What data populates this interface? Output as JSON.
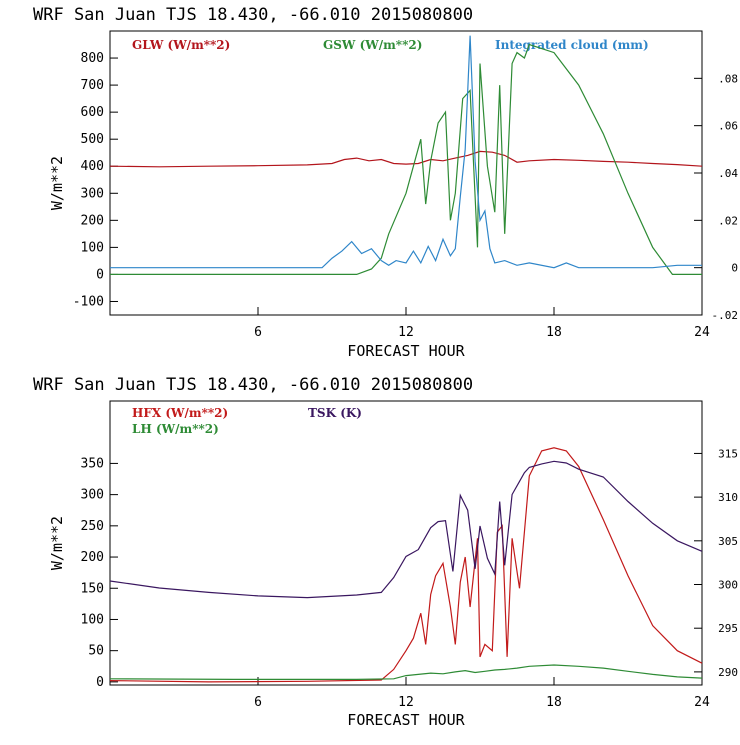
{
  "charts": [
    {
      "title": "WRF  San Juan TJS  18.430, -66.010  2015080800",
      "xlabel": "FORECAST HOUR",
      "ylabel": "W/m**2",
      "xticks": [
        "6",
        "12",
        "18",
        "24"
      ],
      "yticks": [
        "-100",
        "0",
        "100",
        "200",
        "300",
        "400",
        "500",
        "600",
        "700",
        "800"
      ],
      "y2ticks": [
        "-.02",
        "0",
        ".02",
        ".04",
        ".06",
        ".08"
      ],
      "legend": [
        "GLW (W/m**2)",
        "GSW (W/m**2)",
        "Integrated cloud (mm)"
      ]
    },
    {
      "title": "WRF  San Juan TJS  18.430, -66.010  2015080800",
      "xlabel": "FORECAST HOUR",
      "ylabel": "W/m**2",
      "xticks": [
        "6",
        "12",
        "18",
        "24"
      ],
      "yticks": [
        "0",
        "50",
        "100",
        "150",
        "200",
        "250",
        "300",
        "350"
      ],
      "y2ticks": [
        "290",
        "295",
        "300",
        "305",
        "310",
        "315"
      ],
      "legend": [
        "HFX (W/m**2)",
        "LH (W/m**2)",
        "TSK (K)"
      ]
    }
  ],
  "colors": {
    "GLW": "#b3151c",
    "GSW": "#2e8b35",
    "CLOUD": "#2f86c9",
    "HFX": "#c21a1a",
    "LH": "#2e8b35",
    "TSK": "#3a1760",
    "axis": "#000000"
  },
  "chart_data": [
    {
      "type": "line",
      "title": "WRF  San Juan TJS  18.430, -66.010  2015080800",
      "xlabel": "FORECAST HOUR",
      "ylabel": "W/m**2",
      "xlim": [
        0,
        24
      ],
      "ylim": [
        -150,
        900
      ],
      "y2lim": [
        -0.02,
        0.1
      ],
      "grid": false,
      "legend_position": "top",
      "series": [
        {
          "name": "GLW (W/m**2)",
          "axis": "left",
          "color": "#b3151c",
          "x": [
            0,
            2,
            4,
            6,
            8,
            9,
            9.5,
            10,
            10.5,
            11,
            11.5,
            12,
            12.5,
            13,
            13.5,
            14,
            14.5,
            15,
            15.5,
            16,
            16.5,
            17,
            18,
            19,
            20,
            21,
            22,
            23,
            24
          ],
          "y": [
            400,
            398,
            400,
            402,
            405,
            410,
            425,
            430,
            420,
            425,
            410,
            408,
            410,
            425,
            420,
            430,
            440,
            455,
            452,
            440,
            415,
            420,
            425,
            422,
            418,
            415,
            410,
            406,
            400
          ]
        },
        {
          "name": "GSW (W/m**2)",
          "axis": "left",
          "color": "#2e8b35",
          "x": [
            0,
            10,
            10.6,
            11,
            11.3,
            12,
            12.3,
            12.6,
            12.8,
            13,
            13.3,
            13.6,
            13.8,
            14,
            14.3,
            14.6,
            14.9,
            15,
            15.3,
            15.6,
            15.8,
            16,
            16.3,
            16.5,
            16.8,
            17,
            18,
            19,
            20,
            21,
            22,
            22.8,
            23.2,
            24
          ],
          "y": [
            0,
            0,
            20,
            60,
            150,
            300,
            400,
            500,
            260,
            420,
            560,
            600,
            200,
            300,
            650,
            680,
            100,
            780,
            400,
            230,
            700,
            150,
            780,
            820,
            800,
            850,
            820,
            700,
            520,
            300,
            100,
            0,
            0,
            0
          ]
        },
        {
          "name": "Integrated cloud (mm)",
          "axis": "right",
          "color": "#2f86c9",
          "x": [
            0,
            8,
            8.6,
            9,
            9.4,
            9.8,
            10.2,
            10.6,
            11,
            11.3,
            11.6,
            12,
            12.3,
            12.6,
            12.9,
            13.2,
            13.5,
            13.8,
            14,
            14.2,
            14.4,
            14.6,
            14.8,
            15,
            15.2,
            15.4,
            15.6,
            16,
            16.5,
            17,
            18,
            18.5,
            19,
            20,
            21,
            22,
            23,
            24
          ],
          "y": [
            0,
            0,
            0,
            0.004,
            0.007,
            0.011,
            0.006,
            0.008,
            0.003,
            0.001,
            0.003,
            0.002,
            0.007,
            0.002,
            0.009,
            0.003,
            0.012,
            0.005,
            0.008,
            0.03,
            0.05,
            0.098,
            0.045,
            0.02,
            0.024,
            0.008,
            0.002,
            0.003,
            0.001,
            0.002,
            0,
            0.002,
            0,
            0,
            0,
            0,
            0.001,
            0.001
          ]
        }
      ]
    },
    {
      "type": "line",
      "title": "WRF  San Juan TJS  18.430, -66.010  2015080800",
      "xlabel": "FORECAST HOUR",
      "ylabel": "W/m**2",
      "xlim": [
        0,
        24
      ],
      "ylim": [
        -5,
        450
      ],
      "y2lim": [
        288.5,
        321
      ],
      "grid": false,
      "legend_position": "top-left",
      "series": [
        {
          "name": "HFX (W/m**2)",
          "axis": "left",
          "color": "#c21a1a",
          "x": [
            0,
            4,
            8,
            11,
            11.5,
            12,
            12.3,
            12.6,
            12.8,
            13,
            13.2,
            13.5,
            13.8,
            14,
            14.2,
            14.4,
            14.6,
            14.9,
            15,
            15.2,
            15.5,
            15.7,
            15.9,
            16.1,
            16.3,
            16.6,
            17,
            17.5,
            18,
            18.5,
            19,
            20,
            21,
            22,
            23,
            24
          ],
          "y": [
            2,
            0,
            1,
            3,
            20,
            50,
            70,
            110,
            60,
            140,
            170,
            190,
            120,
            60,
            160,
            200,
            120,
            230,
            40,
            60,
            50,
            240,
            250,
            40,
            230,
            150,
            330,
            370,
            375,
            370,
            345,
            260,
            170,
            90,
            50,
            30
          ]
        },
        {
          "name": "LH (W/m**2)",
          "axis": "left",
          "color": "#2e8b35",
          "x": [
            0,
            5,
            10,
            11.5,
            12,
            12.5,
            13,
            13.5,
            14,
            14.4,
            14.8,
            15.2,
            15.6,
            16,
            16.5,
            17,
            18,
            19,
            20,
            21,
            22,
            23,
            24
          ],
          "y": [
            5,
            4,
            4,
            5,
            10,
            12,
            14,
            13,
            16,
            18,
            15,
            17,
            19,
            20,
            22,
            25,
            27,
            25,
            22,
            17,
            12,
            8,
            6
          ]
        },
        {
          "name": "TSK (K)",
          "axis": "right",
          "color": "#3a1760",
          "x": [
            0,
            2,
            4,
            6,
            8,
            10,
            11,
            11.5,
            12,
            12.5,
            13,
            13.3,
            13.6,
            13.9,
            14.2,
            14.5,
            14.8,
            15,
            15.3,
            15.6,
            15.8,
            16,
            16.3,
            16.6,
            16.8,
            17,
            17.5,
            18,
            18.5,
            19,
            20,
            21,
            22,
            23,
            24
          ],
          "y": [
            300.4,
            299.6,
            299.1,
            298.7,
            298.5,
            298.8,
            299.1,
            300.8,
            303.2,
            304.0,
            306.5,
            307.2,
            307.3,
            301.5,
            310.2,
            308.5,
            301.8,
            306.7,
            303.0,
            301.2,
            309.5,
            302.2,
            310.3,
            311.8,
            312.8,
            313.4,
            313.8,
            314.1,
            313.9,
            313.2,
            312.3,
            309.5,
            307.0,
            305.0,
            303.8
          ]
        }
      ]
    }
  ]
}
